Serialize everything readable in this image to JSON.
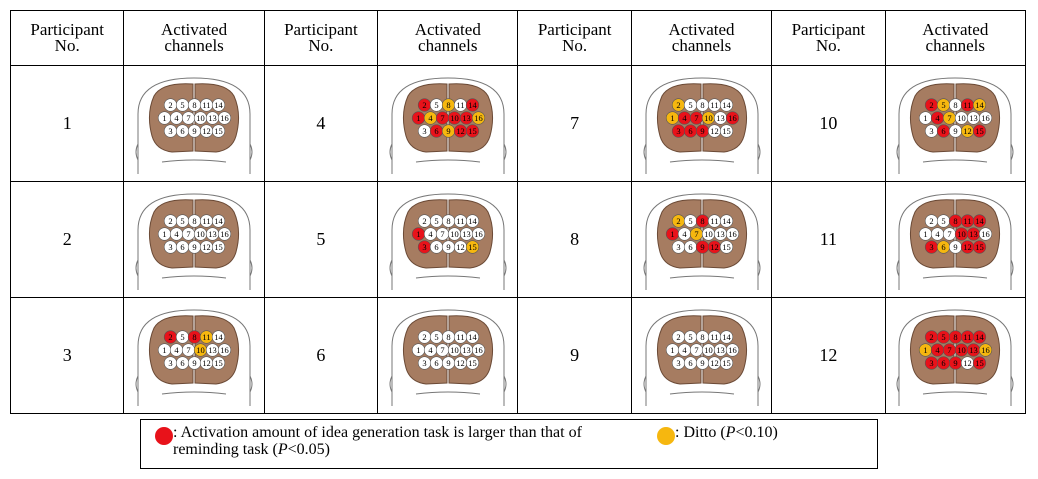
{
  "table": {
    "header": [
      [
        "Participant",
        "No."
      ],
      [
        "Activated",
        "channels"
      ]
    ],
    "participants": [
      {
        "no": "1",
        "activation": [
          "none",
          "none",
          "none",
          "none",
          "none",
          "none",
          "none",
          "none",
          "none",
          "none",
          "none",
          "none",
          "none",
          "none",
          "none",
          "none"
        ]
      },
      {
        "no": "2",
        "activation": [
          "none",
          "none",
          "none",
          "none",
          "none",
          "none",
          "none",
          "none",
          "none",
          "none",
          "none",
          "none",
          "none",
          "none",
          "none",
          "none"
        ]
      },
      {
        "no": "3",
        "activation": [
          "none",
          "red",
          "none",
          "none",
          "none",
          "none",
          "none",
          "red",
          "none",
          "yellow",
          "yellow",
          "none",
          "none",
          "none",
          "none",
          "none"
        ]
      },
      {
        "no": "4",
        "activation": [
          "red",
          "red",
          "none",
          "yellow",
          "none",
          "red",
          "red",
          "yellow",
          "yellow",
          "red",
          "none",
          "red",
          "red",
          "red",
          "red",
          "yellow"
        ]
      },
      {
        "no": "5",
        "activation": [
          "red",
          "none",
          "red",
          "none",
          "none",
          "none",
          "none",
          "none",
          "none",
          "none",
          "none",
          "none",
          "none",
          "none",
          "yellow",
          "none"
        ]
      },
      {
        "no": "6",
        "activation": [
          "none",
          "none",
          "none",
          "none",
          "none",
          "none",
          "none",
          "none",
          "none",
          "none",
          "none",
          "none",
          "none",
          "none",
          "none",
          "none"
        ]
      },
      {
        "no": "7",
        "activation": [
          "yellow",
          "yellow",
          "red",
          "red",
          "none",
          "red",
          "red",
          "none",
          "red",
          "yellow",
          "none",
          "none",
          "none",
          "none",
          "none",
          "red"
        ]
      },
      {
        "no": "8",
        "activation": [
          "red",
          "yellow",
          "none",
          "none",
          "none",
          "none",
          "yellow",
          "red",
          "red",
          "none",
          "none",
          "red",
          "none",
          "none",
          "none",
          "none"
        ]
      },
      {
        "no": "9",
        "activation": [
          "none",
          "none",
          "none",
          "none",
          "none",
          "none",
          "none",
          "none",
          "none",
          "none",
          "none",
          "none",
          "none",
          "none",
          "none",
          "none"
        ]
      },
      {
        "no": "10",
        "activation": [
          "none",
          "red",
          "none",
          "red",
          "yellow",
          "red",
          "yellow",
          "none",
          "none",
          "none",
          "red",
          "yellow",
          "none",
          "yellow",
          "red",
          "none"
        ]
      },
      {
        "no": "11",
        "activation": [
          "none",
          "none",
          "red",
          "none",
          "none",
          "yellow",
          "none",
          "red",
          "none",
          "red",
          "red",
          "red",
          "red",
          "red",
          "red",
          "none"
        ]
      },
      {
        "no": "12",
        "activation": [
          "yellow",
          "red",
          "red",
          "red",
          "red",
          "red",
          "red",
          "red",
          "red",
          "red",
          "red",
          "none",
          "red",
          "red",
          "red",
          "yellow"
        ]
      }
    ],
    "channels": [
      "1",
      "2",
      "3",
      "4",
      "5",
      "6",
      "7",
      "8",
      "9",
      "10",
      "11",
      "12",
      "13",
      "14",
      "15",
      "16"
    ],
    "colors": {
      "red": "#e8121a",
      "yellow": "#f6b70f",
      "none": "#ffffff"
    }
  },
  "legend": [
    {
      "color": "red",
      "before": ": Activation amount of idea generation task is larger than that of reminding task (",
      "italic": "P",
      "after": "<0.05)"
    },
    {
      "color": "yellow",
      "before": ": Ditto (",
      "italic": "P",
      "after": "<0.10)"
    }
  ]
}
